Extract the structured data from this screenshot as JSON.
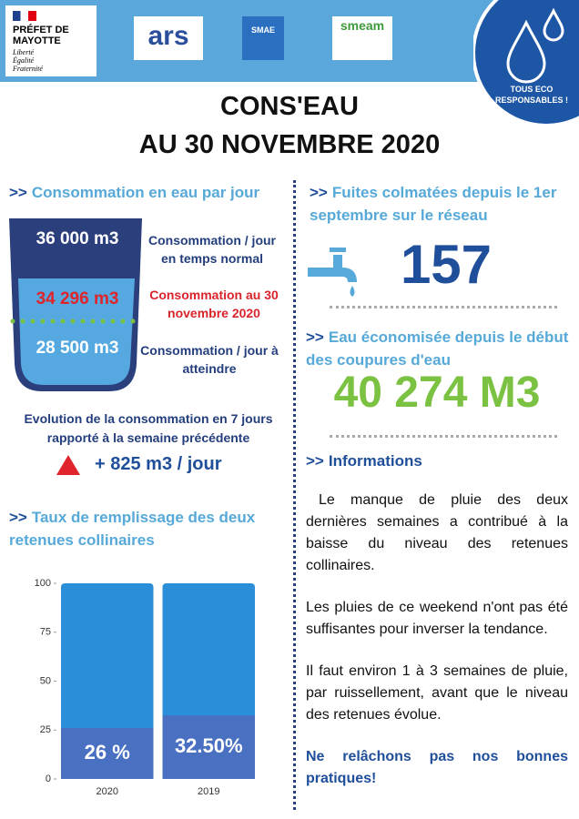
{
  "header": {
    "prefet": "PRÉFET DE MAYOTTE",
    "devise": [
      "Liberté",
      "Égalité",
      "Fraternité"
    ],
    "logos": [
      "ars",
      "SMAE",
      "smeam"
    ],
    "badge": "TOUS ECO RESPONSABLES !"
  },
  "title": [
    "CONS'EAU",
    "AU 30 NOVEMBRE 2020"
  ],
  "prefix": ">>",
  "consommation": {
    "heading": "Consommation en eau par jour",
    "levels": [
      {
        "value": "36 000 m3",
        "label": "Consommation / jour en temps normal"
      },
      {
        "value": "34 296 m3",
        "label": "Consommation au 30 novembre 2020"
      },
      {
        "value": "28 500 m3",
        "label": "Consommation / jour à atteindre"
      }
    ],
    "evolution": "Evolution de la consommation en 7 jours rapporté à la semaine précédente",
    "evolution_value": "+ 825 m3 / jour"
  },
  "remplissage": {
    "heading": "Taux de remplissage des deux retenues collinaires"
  },
  "fuites": {
    "heading": "Fuites colmatées depuis le 1er septembre sur le réseau",
    "value": "157"
  },
  "economie": {
    "heading": "Eau économisée depuis le début des coupures d'eau",
    "value": "40 274 M3"
  },
  "informations": {
    "heading": "Informations",
    "paragraphs": [
      "Le manque de pluie des deux dernières semaines a contribué à la baisse du niveau des retenues collinaires.",
      "Les pluies de ce weekend n'ont pas été suffisantes pour inverser la tendance.",
      "Il faut environ 1 à 3 semaines de pluie, par ruissellement, avant que le niveau des retenues évolue."
    ],
    "conclusion": "Ne relâchons pas nos bonnes pratiques!"
  },
  "chart_data": {
    "type": "bar",
    "categories": [
      "2020",
      "2019"
    ],
    "values": [
      26,
      32.5
    ],
    "value_labels": [
      "26 %",
      "32.50%"
    ],
    "color": "#4a70c2",
    "ylim": [
      0,
      100
    ],
    "yticks": [
      0,
      25,
      50,
      75,
      100
    ]
  }
}
